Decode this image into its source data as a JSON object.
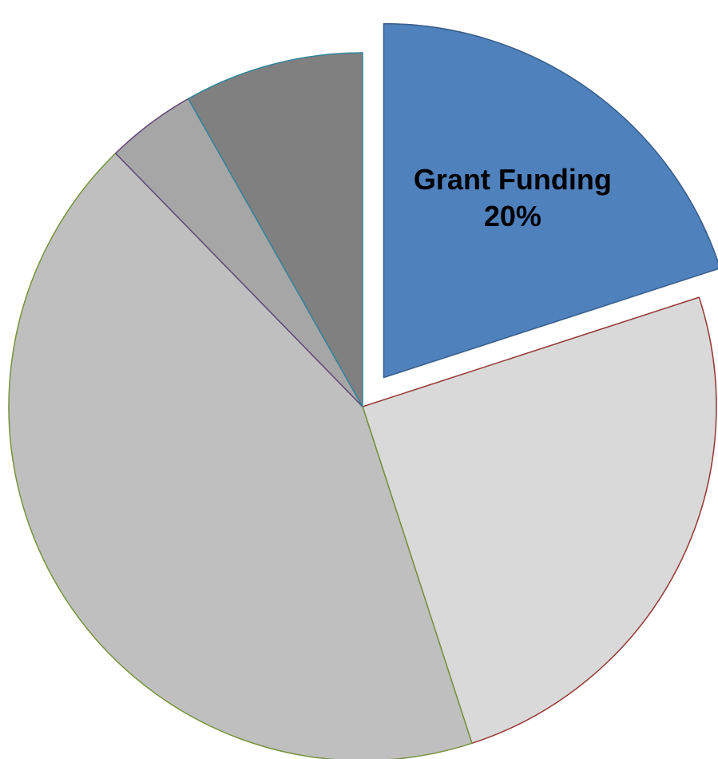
{
  "chart_data": {
    "type": "pie",
    "start_angle_deg": 0,
    "direction": "clockwise",
    "slices": [
      {
        "label": "Grant Funding",
        "value": 20,
        "value_label": "20%",
        "color": "#4F81BD",
        "stroke": "#385D8A",
        "exploded": true
      },
      {
        "label": "",
        "value": 25,
        "value_label": "",
        "color": "#D9D9D9",
        "stroke": "#953735",
        "exploded": false
      },
      {
        "label": "",
        "value": 42.7,
        "value_label": "",
        "color": "#BFBFBF",
        "stroke": "#77933C",
        "exploded": false
      },
      {
        "label": "",
        "value": 4.1,
        "value_label": "",
        "color": "#A6A6A6",
        "stroke": "#5F497A",
        "exploded": false
      },
      {
        "label": "",
        "value": 8.2,
        "value_label": "",
        "color": "#808080",
        "stroke": "#31859C",
        "exploded": false
      }
    ],
    "title": "",
    "legend": "none"
  }
}
